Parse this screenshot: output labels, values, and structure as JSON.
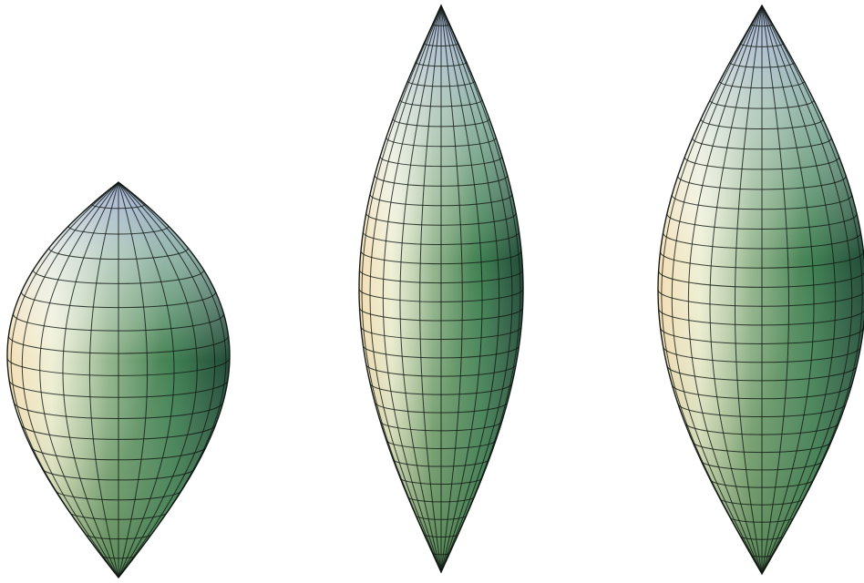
{
  "colors": {
    "background": "#ffffff",
    "surface_dark": "#2f6a4a",
    "surface_mid": "#4f8a4e",
    "surface_light": "#f2e3a6",
    "surface_highlight": "#e9edf8",
    "surface_tip": "#7d86b9",
    "mesh": "#111a14"
  },
  "shapes": [
    {
      "name": "teardrop",
      "meridians": 24,
      "parallels": 18,
      "profile": "teardrop"
    },
    {
      "name": "spindle-narrow",
      "meridians": 24,
      "parallels": 30,
      "profile": "lens"
    },
    {
      "name": "spindle-wide",
      "meridians": 24,
      "parallels": 30,
      "profile": "lens"
    }
  ]
}
